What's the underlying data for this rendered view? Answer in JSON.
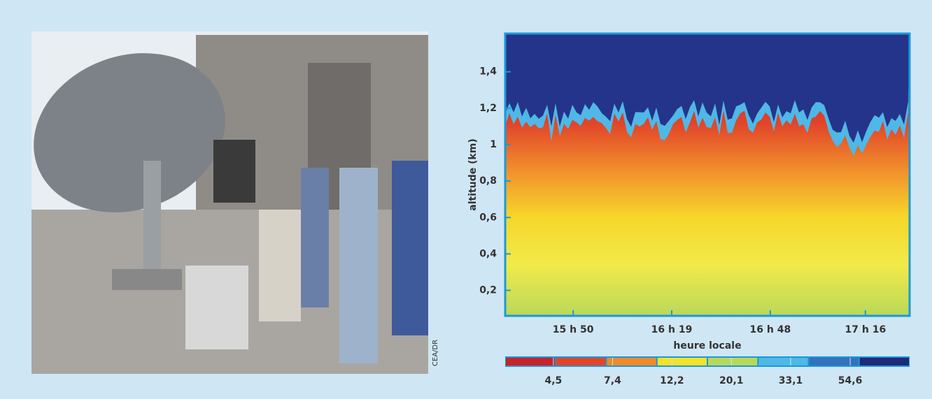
{
  "credit": "CEA/DR",
  "chart_data": {
    "type": "heatmap",
    "ylabel": "altitude (km)",
    "xlabel": "heure locale",
    "ylim": [
      0.06,
      1.61
    ],
    "yticks": [
      {
        "value": 0.2,
        "label": "0,2"
      },
      {
        "value": 0.4,
        "label": "0,4"
      },
      {
        "value": 0.6,
        "label": "0,6"
      },
      {
        "value": 0.8,
        "label": "0,8"
      },
      1,
      {
        "value": 1.2,
        "label": "1,2"
      },
      {
        "value": 1.4,
        "label": "1,4"
      }
    ],
    "xlim": [
      930,
      1049
    ],
    "xticks": [
      {
        "value": 950,
        "label": "15 h 50"
      },
      {
        "value": 979,
        "label": "16 h 19"
      },
      {
        "value": 1008,
        "label": "16 h 48"
      },
      {
        "value": 1036,
        "label": "17 h 16"
      }
    ],
    "colorbar": {
      "log": true,
      "lim": [
        3.0,
        90
      ],
      "ticks": [
        {
          "value": 4.5,
          "label": "4,5"
        },
        {
          "value": 7.4,
          "label": "7,4"
        },
        {
          "value": 12.2,
          "label": "12,2"
        },
        {
          "value": 20.1,
          "label": "20,1"
        },
        {
          "value": 33.1,
          "label": "33,1"
        },
        {
          "value": 54.6,
          "label": "54,6"
        }
      ],
      "colors": [
        "#c8222a",
        "#e0452a",
        "#f08a2c",
        "#f6e22a",
        "#b9d85a",
        "#4fb8e6",
        "#3472bd",
        "#1e2a78"
      ]
    }
  }
}
